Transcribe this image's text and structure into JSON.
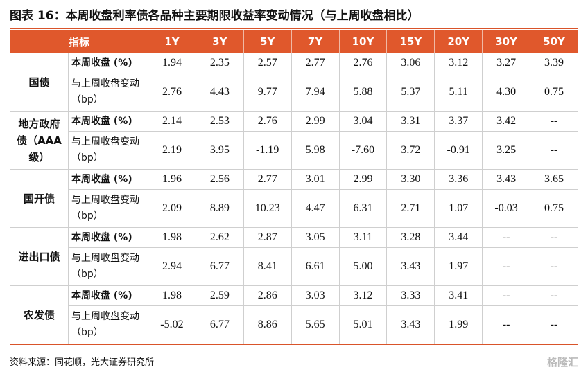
{
  "title": "图表 16：本周收盘利率债各品种主要期限收益率变动情况（与上周收盘相比）",
  "header": [
    "指标",
    "1Y",
    "3Y",
    "5Y",
    "7Y",
    "10Y",
    "15Y",
    "20Y",
    "30Y",
    "50Y"
  ],
  "groups": [
    {
      "name": "国债",
      "rows": [
        {
          "label": "本周收盘 (%)",
          "values": [
            "1.94",
            "2.35",
            "2.57",
            "2.77",
            "2.76",
            "3.06",
            "3.12",
            "3.27",
            "3.39"
          ]
        },
        {
          "label": "与上周收盘变动（bp）",
          "values": [
            "2.76",
            "4.43",
            "9.77",
            "7.94",
            "5.88",
            "5.37",
            "5.11",
            "4.30",
            "0.75"
          ]
        }
      ]
    },
    {
      "name": "地方政府债（AAA 级）",
      "rows": [
        {
          "label": "本周收盘 (%)",
          "values": [
            "2.14",
            "2.53",
            "2.76",
            "2.99",
            "3.04",
            "3.31",
            "3.37",
            "3.42",
            "--"
          ]
        },
        {
          "label": "与上周收盘变动（bp）",
          "values": [
            "2.19",
            "3.95",
            "-1.19",
            "5.98",
            "-7.60",
            "3.72",
            "-0.91",
            "3.25",
            "--"
          ]
        }
      ]
    },
    {
      "name": "国开债",
      "rows": [
        {
          "label": "本周收盘 (%)",
          "values": [
            "1.96",
            "2.56",
            "2.77",
            "3.01",
            "2.99",
            "3.30",
            "3.36",
            "3.43",
            "3.65"
          ]
        },
        {
          "label": "与上周收盘变动（bp）",
          "values": [
            "2.09",
            "8.89",
            "10.23",
            "4.47",
            "6.31",
            "2.71",
            "1.07",
            "-0.03",
            "0.75"
          ]
        }
      ]
    },
    {
      "name": "进出口债",
      "rows": [
        {
          "label": "本周收盘 (%)",
          "values": [
            "1.98",
            "2.62",
            "2.87",
            "3.05",
            "3.11",
            "3.28",
            "3.44",
            "--",
            "--"
          ]
        },
        {
          "label": "与上周收盘变动（bp）",
          "values": [
            "2.94",
            "6.77",
            "8.41",
            "6.61",
            "5.00",
            "3.43",
            "1.97",
            "--",
            "--"
          ]
        }
      ]
    },
    {
      "name": "农发债",
      "rows": [
        {
          "label": "本周收盘 (%)",
          "values": [
            "1.98",
            "2.59",
            "2.86",
            "3.03",
            "3.12",
            "3.33",
            "3.41",
            "--",
            "--"
          ]
        },
        {
          "label": "与上周收盘变动（bp）",
          "values": [
            "-5.02",
            "6.77",
            "8.86",
            "5.65",
            "5.01",
            "3.43",
            "1.99",
            "--",
            "--"
          ]
        }
      ]
    }
  ],
  "source": "资料来源：同花顺，光大证券研究所",
  "watermark": "格隆汇"
}
